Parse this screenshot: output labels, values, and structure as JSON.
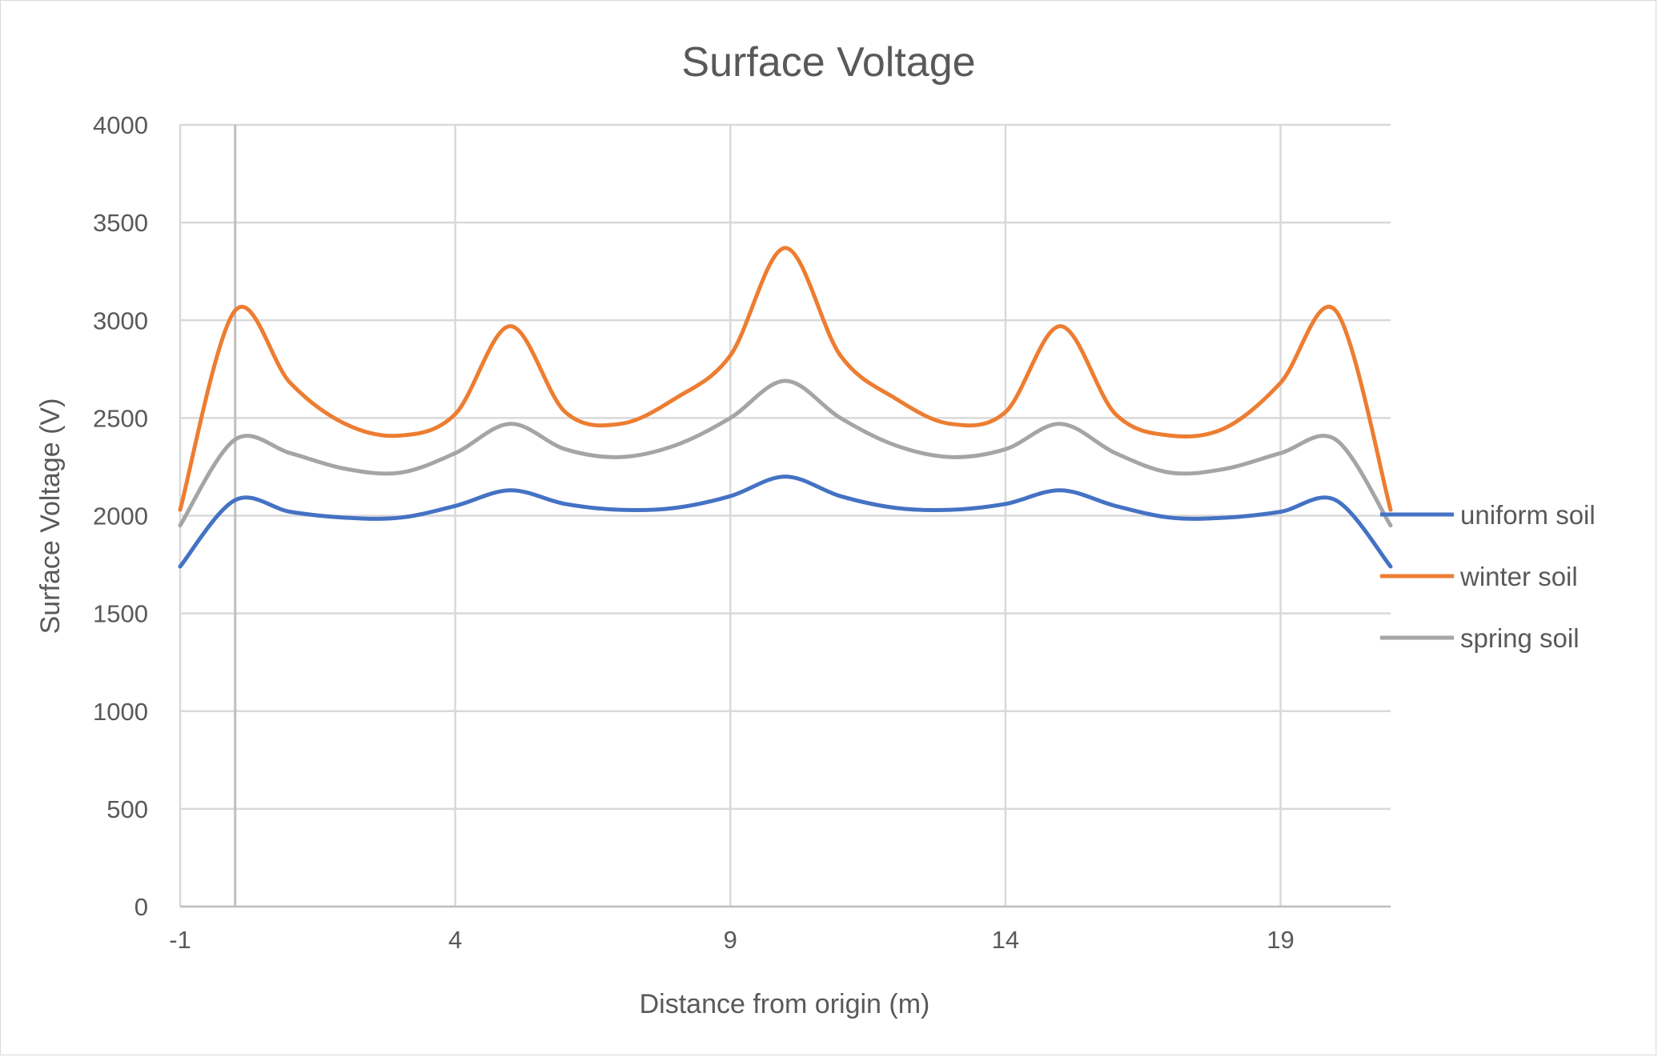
{
  "chart_data": {
    "type": "line",
    "title": "Surface Voltage",
    "xlabel": "Distance from origin (m)",
    "ylabel": "Surface Voltage (V)",
    "xlim": [
      -1,
      21
    ],
    "ylim": [
      0,
      4000
    ],
    "x_ticks": [
      -1,
      4,
      9,
      14,
      19
    ],
    "y_ticks": [
      0,
      500,
      1000,
      1500,
      2000,
      2500,
      3000,
      3500,
      4000
    ],
    "grid": true,
    "smoothed": true,
    "legend_position": "right",
    "x": [
      -1,
      0,
      1,
      2,
      3,
      4,
      5,
      6,
      7,
      8,
      9,
      10,
      11,
      12,
      13,
      14,
      15,
      16,
      17,
      18,
      19,
      20,
      21
    ],
    "series": [
      {
        "name": "uniform soil",
        "color": "#4472C4",
        "values": [
          1740,
          2080,
          2020,
          1990,
          1990,
          2050,
          2130,
          2060,
          2030,
          2040,
          2100,
          2200,
          2100,
          2040,
          2030,
          2060,
          2130,
          2050,
          1990,
          1990,
          2020,
          2080,
          1740
        ]
      },
      {
        "name": "winter soil",
        "color": "#ED7D31",
        "values": [
          2030,
          3050,
          2680,
          2470,
          2410,
          2520,
          2970,
          2530,
          2470,
          2600,
          2820,
          3370,
          2820,
          2600,
          2470,
          2530,
          2970,
          2520,
          2410,
          2450,
          2680,
          3050,
          2030
        ]
      },
      {
        "name": "spring soil",
        "color": "#A5A5A5",
        "values": [
          1950,
          2390,
          2320,
          2240,
          2220,
          2320,
          2470,
          2340,
          2300,
          2360,
          2500,
          2690,
          2500,
          2360,
          2300,
          2340,
          2470,
          2320,
          2220,
          2240,
          2320,
          2390,
          1950
        ]
      }
    ]
  }
}
